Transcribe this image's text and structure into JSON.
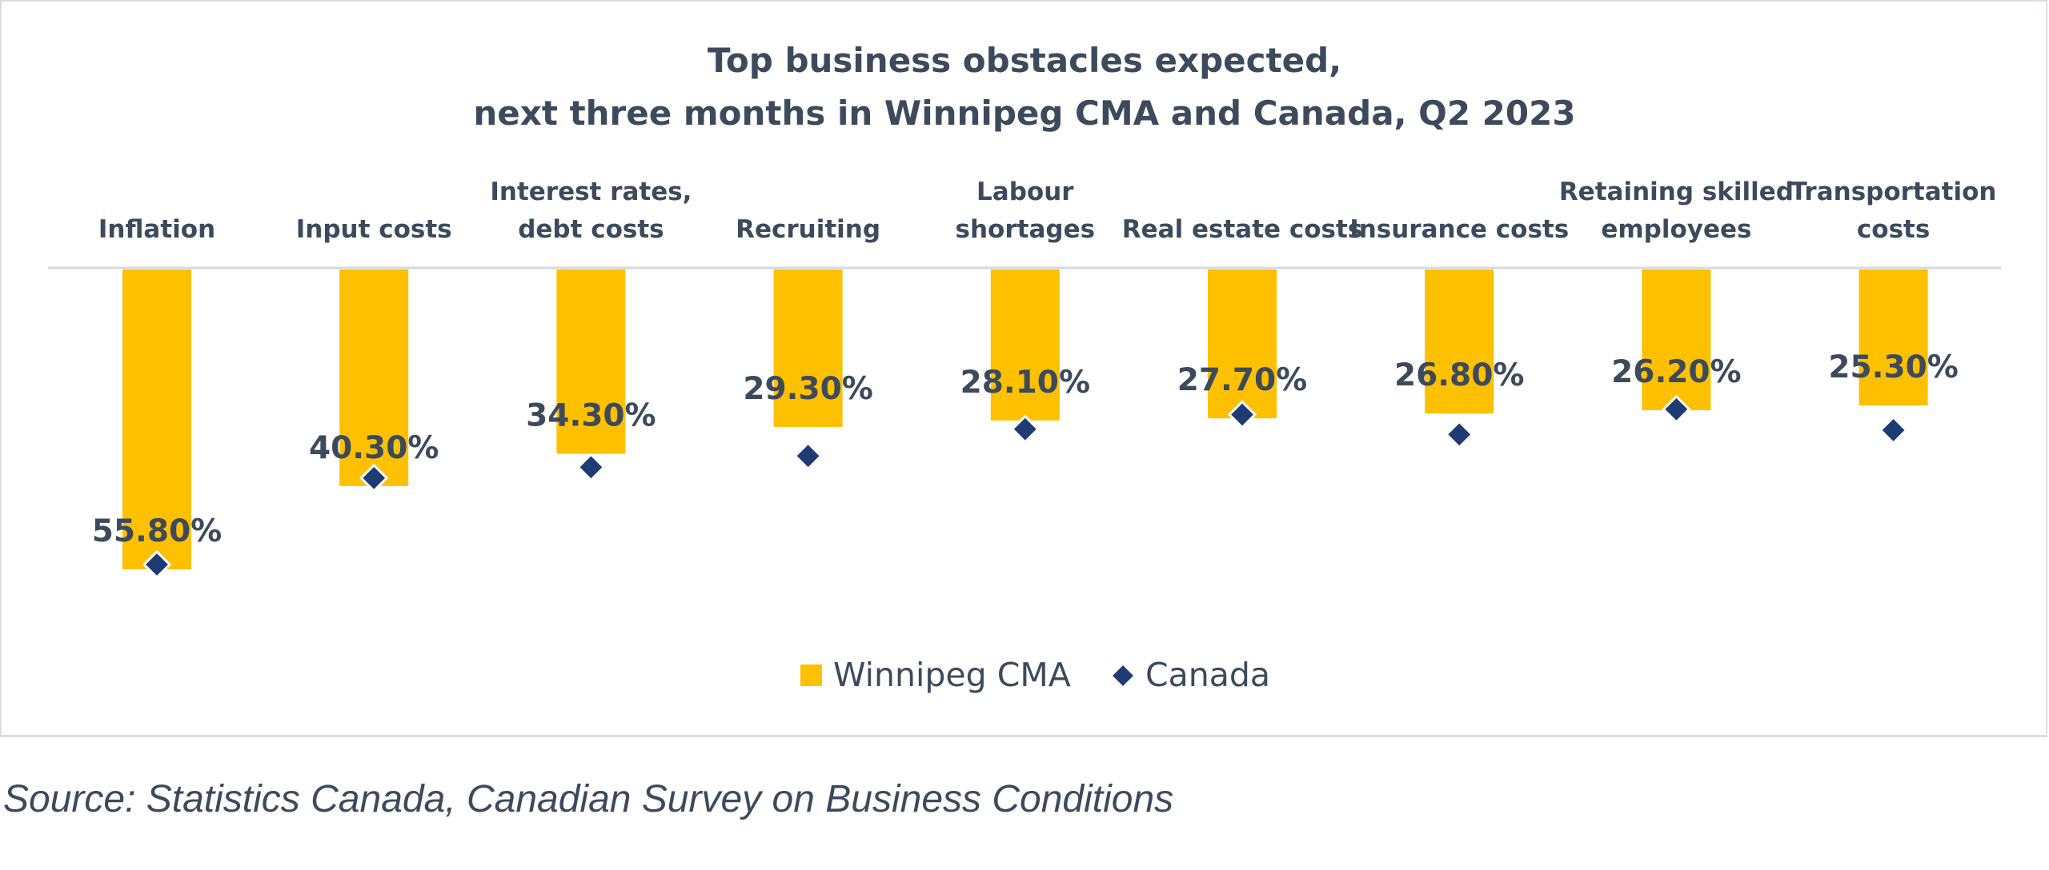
{
  "chart_data": {
    "type": "bar",
    "title_lines": [
      "Top business obstacles expected,",
      "next three months in Winnipeg CMA and Canada, Q2 2023"
    ],
    "categories": [
      [
        "Inflation"
      ],
      [
        "Input costs"
      ],
      [
        "Interest rates,",
        "debt costs"
      ],
      [
        "Recruiting"
      ],
      [
        "Labour",
        "shortages"
      ],
      [
        "Real estate costs"
      ],
      [
        "Insurance costs"
      ],
      [
        "Retaining skilled",
        "employees"
      ],
      [
        "Transportation",
        "costs"
      ]
    ],
    "series": [
      {
        "name": "Winnipeg CMA",
        "kind": "bar",
        "color": "#FFC000",
        "values": [
          55.8,
          40.3,
          34.3,
          29.3,
          28.1,
          27.7,
          26.8,
          26.2,
          25.3
        ],
        "labels": [
          "55.80%",
          "40.30%",
          "34.30%",
          "29.30%",
          "28.10%",
          "27.70%",
          "26.80%",
          "26.20%",
          "25.30%"
        ]
      },
      {
        "name": "Canada",
        "kind": "marker",
        "marker": "diamond",
        "color": "#1F3B73",
        "values": [
          55.8,
          39.7,
          37.7,
          35.6,
          30.6,
          27.9,
          31.6,
          26.9,
          30.8
        ]
      }
    ],
    "ylim": [
      0,
      60
    ],
    "y_direction": "downward",
    "axis_labels_position": "top",
    "legend_position": "bottom-center",
    "grid": false
  },
  "source_note": "Source: Statistics Canada, Canadian Survey on Business Conditions"
}
